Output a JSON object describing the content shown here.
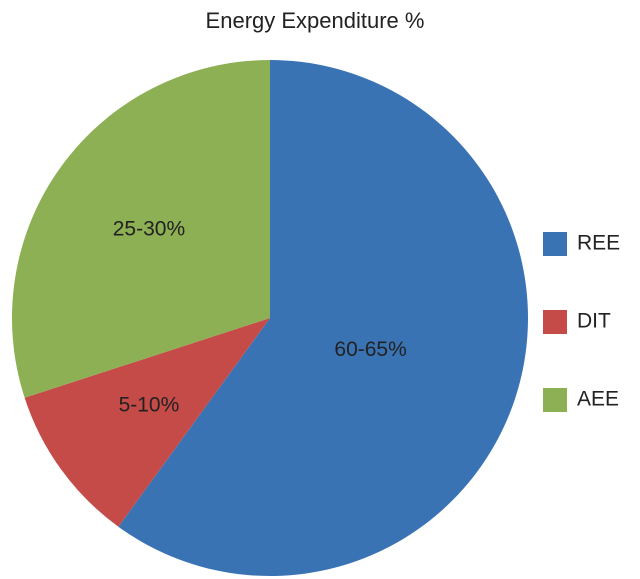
{
  "chart_data": {
    "type": "pie",
    "title": "Energy Expenditure %",
    "categories": [
      "REE",
      "DIT",
      "AEE"
    ],
    "values": [
      60,
      10,
      30
    ],
    "value_labels": [
      "60-65%",
      "5-10%",
      "25-30%"
    ],
    "colors": [
      "#3a73b4",
      "#c44b48",
      "#8cb053"
    ],
    "legend": "right"
  }
}
